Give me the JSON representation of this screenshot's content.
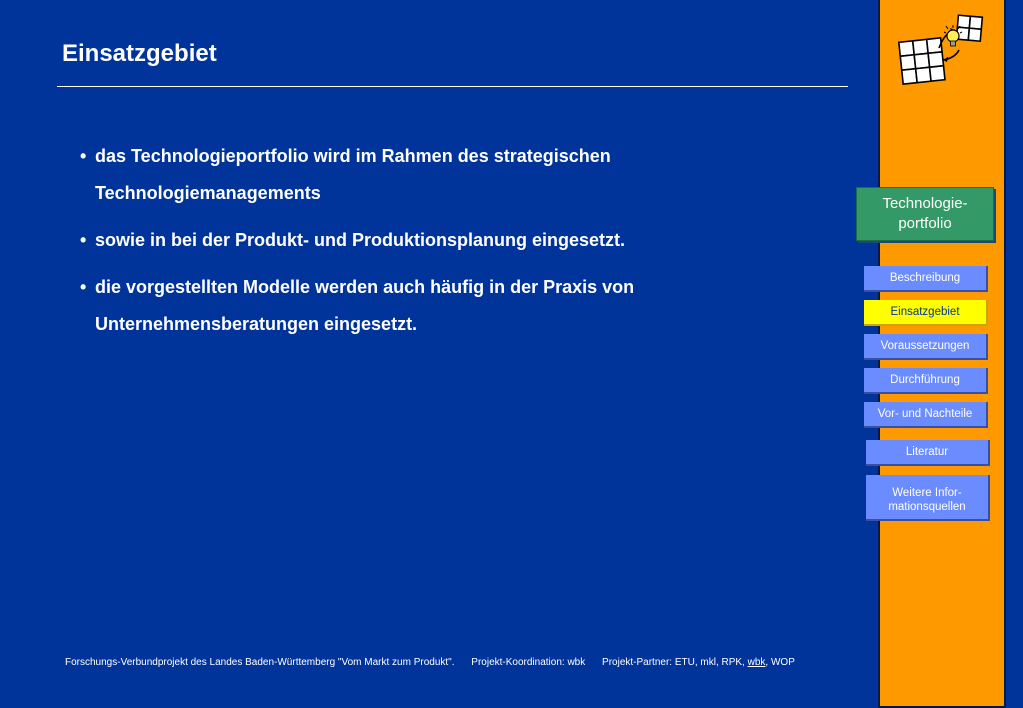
{
  "slide": {
    "title": "Einsatzgebiet",
    "bullets": [
      {
        "marker": "•",
        "text": "das Technologieportfolio wird im Rahmen des strategischen Technologiemanagements"
      },
      {
        "marker": "•",
        "text": "sowie in bei der Produkt- und Produktionsplanung eingesetzt."
      },
      {
        "marker": "•",
        "text": "die vorgestellten Modelle werden auch häufig in der Praxis von Unternehmensberatungen eingesetzt."
      }
    ]
  },
  "sidebar": {
    "section_line1": "Technologie-",
    "section_line2": "portfolio",
    "nav": [
      {
        "label": "Beschreibung"
      },
      {
        "label": "Einsatzgebiet",
        "active": true
      },
      {
        "label": "Voraussetzungen"
      },
      {
        "label": "Durchführung"
      },
      {
        "label": "Vor- und Nachteile"
      },
      {
        "label": "Literatur"
      },
      {
        "label_line1": "Weitere Infor-",
        "label_line2": "mationsquellen"
      }
    ]
  },
  "footer": {
    "project": "Forschungs-Verbundprojekt des Landes Baden-Württemberg \"Vom Markt zum Produkt\".",
    "coordination": "Projekt-Koordination: wbk",
    "partners_prefix": "Projekt-Partner: ETU, mkl, RPK, ",
    "partners_link": "wbk",
    "partners_suffix": ", WOP"
  },
  "colors": {
    "background": "#00349a",
    "sidebar": "#ff9900",
    "section_label": "#339966",
    "nav_button": "#6b8cff",
    "nav_active": "#ffff00"
  },
  "icons": {
    "logo": "portfolio-grid-lightbulb-icon"
  }
}
